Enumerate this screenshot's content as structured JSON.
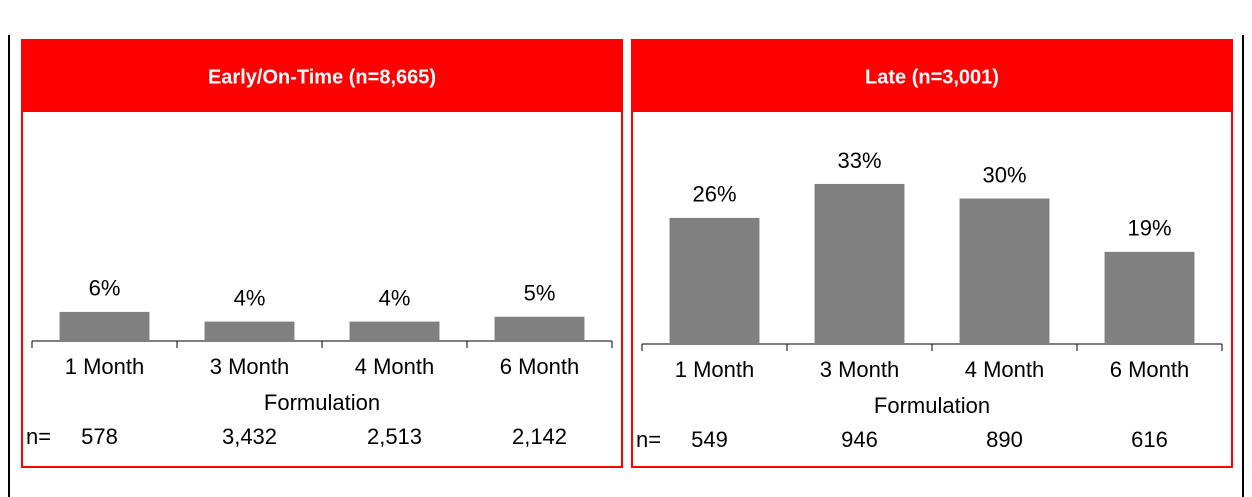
{
  "chart_data": [
    {
      "type": "bar",
      "title": "Early/On-Time (n=8,665)",
      "categories": [
        "1 Month",
        "3 Month",
        "4 Month",
        "6 Month"
      ],
      "values": [
        6,
        4,
        4,
        5
      ],
      "value_labels": [
        "6%",
        "4%",
        "4%",
        "5%"
      ],
      "color": "#808080",
      "ylim": [
        0,
        40
      ],
      "x_label": "Formulation",
      "n_label": "n=",
      "n_values": [
        578,
        {
          "value": 3432,
          "label": "3,432"
        },
        {
          "value": 2513,
          "label": "2,513"
        },
        {
          "value": 2142,
          "label": "2,142"
        }
      ]
    },
    {
      "type": "bar",
      "title": "Late (n=3,001)",
      "categories": [
        "1 Month",
        "3 Month",
        "4 Month",
        "6 Month"
      ],
      "values": [
        26,
        33,
        30,
        19
      ],
      "value_labels": [
        "26%",
        "33%",
        "30%",
        "19%"
      ],
      "color": "#808080",
      "ylim": [
        0,
        40
      ],
      "x_label": "Formulation",
      "n_label": "n=",
      "n_values": [
        549,
        946,
        890,
        616
      ]
    }
  ]
}
